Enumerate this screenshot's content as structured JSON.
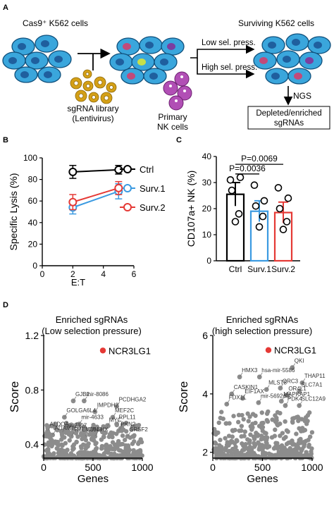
{
  "panel_a": {
    "label": "A",
    "title_left": "Cas9⁺ K562 cells",
    "title_right": "Surviving K562 cells",
    "library_line1": "sgRNA library",
    "library_line2": "(Lentivirus)",
    "nk_line1": "Primary",
    "nk_line2": "NK cells",
    "low_pressure": "Low sel. press.",
    "high_pressure": "High sel. press.",
    "ngs": "NGS",
    "result_line1": "Depleted/enriched",
    "result_line2": "sgRNAs",
    "colors": {
      "cell_fill": "#3aa6dc",
      "cell_stroke": "#10507c",
      "nucleus": "#1f5f9e",
      "nk": "#b14fb5",
      "gear": "#d4a017"
    }
  },
  "panel_b": {
    "label": "B"
  },
  "panel_c": {
    "label": "C"
  },
  "panel_d": {
    "label": "D",
    "left_title_line1": "Enriched sgRNAs",
    "left_title_line2": "(Low selection pressure)",
    "right_title_line1": "Enriched sgRNAs",
    "right_title_line2": "(high selection pressure)",
    "left_point_labels": [
      "GJB2",
      "mir-8086",
      "PCDHGA2",
      "IMPDH2",
      "GOLGA6L4",
      "MEF2C",
      "RPL11",
      "mir-4633",
      "MYC",
      "PKN2",
      "ALDOA",
      "mir-7107",
      "ADAMTS7",
      "JUNB",
      "LHX",
      "SRSF2",
      "TMEM38"
    ],
    "right_point_labels": [
      "QKI",
      "HMX3",
      "hsa-mir-5586",
      "THAP11",
      "CASKIN1",
      "MLST8",
      "ORC3",
      "SLC7A1",
      "EIF1AX",
      "OR4L1",
      "FDX1L",
      "mir-5692c-2",
      "MAPKAP1",
      "PDK4",
      "SLC12A9"
    ]
  },
  "chart_data": [
    {
      "type": "line",
      "xlabel": "E:T",
      "ylabel": "Specific Lysis (%)",
      "xlim": [
        0,
        6
      ],
      "ylim": [
        0,
        100
      ],
      "xticks": [
        "0",
        "2",
        "4",
        "6"
      ],
      "yticks": [
        "0",
        "20",
        "40",
        "60",
        "80",
        "100"
      ],
      "legend_position": "right",
      "series": [
        {
          "name": "Ctrl",
          "color": "#000000",
          "x": [
            2,
            5
          ],
          "y": [
            87,
            89
          ],
          "err": [
            6,
            4
          ]
        },
        {
          "name": "Surv.1",
          "color": "#3b9ae1",
          "x": [
            2,
            5
          ],
          "y": [
            54,
            69
          ],
          "err": [
            6,
            7
          ]
        },
        {
          "name": "Surv.2",
          "color": "#e53935",
          "x": [
            2,
            5
          ],
          "y": [
            59,
            72
          ],
          "err": [
            7,
            6
          ]
        }
      ]
    },
    {
      "type": "bar",
      "ylabel": "CD107a+ NK (%)",
      "ylim": [
        0,
        40
      ],
      "yticks": [
        "0",
        "10",
        "20",
        "30",
        "40"
      ],
      "categories": [
        "Ctrl",
        "Surv.1",
        "Surv.2"
      ],
      "values": [
        25.5,
        19,
        18.5
      ],
      "errors": [
        4.5,
        4,
        4
      ],
      "colors": [
        "#000000",
        "#3b9ae1",
        "#e53935"
      ],
      "points": [
        [
          31,
          32,
          27,
          18,
          15
        ],
        [
          29,
          23,
          21,
          17,
          13
        ],
        [
          28,
          24,
          20,
          15,
          12
        ]
      ],
      "annotations": [
        {
          "text": "P=0.0069",
          "from": 0,
          "to": 2,
          "y": 37
        },
        {
          "text": "P=0.0036",
          "from": 0,
          "to": 1,
          "y": 33.3
        }
      ]
    },
    {
      "type": "scatter",
      "ylabel": "Score",
      "xlabel": "Genes",
      "xlim": [
        0,
        1000
      ],
      "ylim": [
        0.3,
        1.2
      ],
      "xticks": [
        "0",
        "500",
        "1000"
      ],
      "yticks": [
        "0.4",
        "0.8",
        "1.2"
      ],
      "highlight": {
        "label": "NCR3LG1",
        "x": 600,
        "y": 1.09,
        "color": "#e53935"
      },
      "labeled_points": [
        {
          "label": "GJB2",
          "x": 300,
          "y": 0.72
        },
        {
          "label": "mir-8086",
          "x": 410,
          "y": 0.72
        },
        {
          "label": "PCDHGA2",
          "x": 740,
          "y": 0.68
        },
        {
          "label": "IMPDH2",
          "x": 520,
          "y": 0.64
        },
        {
          "label": "GOLGA6L4",
          "x": 210,
          "y": 0.6
        },
        {
          "label": "MEF2C",
          "x": 700,
          "y": 0.6
        },
        {
          "label": "RPL11",
          "x": 740,
          "y": 0.55
        },
        {
          "label": "mir-4633",
          "x": 360,
          "y": 0.55
        },
        {
          "label": "MYC",
          "x": 640,
          "y": 0.53
        },
        {
          "label": "PKN2",
          "x": 760,
          "y": 0.5
        },
        {
          "label": "ALDOA",
          "x": 40,
          "y": 0.5
        },
        {
          "label": "mir-7107",
          "x": 190,
          "y": 0.49
        },
        {
          "label": "ADAMTS7",
          "x": 90,
          "y": 0.47
        },
        {
          "label": "JUNB",
          "x": 420,
          "y": 0.46
        },
        {
          "label": "LHX",
          "x": 520,
          "y": 0.46
        },
        {
          "label": "SRSF2",
          "x": 850,
          "y": 0.46
        },
        {
          "label": "TMEM38",
          "x": 280,
          "y": 0.46
        }
      ]
    },
    {
      "type": "scatter",
      "ylabel": "Score",
      "xlabel": "Genes",
      "xlim": [
        0,
        1000
      ],
      "ylim": [
        1.8,
        6
      ],
      "xticks": [
        "0",
        "500",
        "1000"
      ],
      "yticks": [
        "2",
        "4",
        "6"
      ],
      "highlight": {
        "label": "NCR3LG1",
        "x": 560,
        "y": 5.5,
        "color": "#e53935"
      },
      "labeled_points": [
        {
          "label": "QKI",
          "x": 800,
          "y": 4.9
        },
        {
          "label": "HMX3",
          "x": 270,
          "y": 4.58
        },
        {
          "label": "hsa-mir-5586",
          "x": 470,
          "y": 4.58
        },
        {
          "label": "THAP11",
          "x": 900,
          "y": 4.38
        },
        {
          "label": "CASKIN1",
          "x": 190,
          "y": 4.0
        },
        {
          "label": "MLST8",
          "x": 540,
          "y": 4.15
        },
        {
          "label": "ORC3",
          "x": 680,
          "y": 4.2
        },
        {
          "label": "SLC7A1",
          "x": 870,
          "y": 4.08
        },
        {
          "label": "EIF1AX",
          "x": 300,
          "y": 3.85
        },
        {
          "label": "OR4L1",
          "x": 740,
          "y": 3.95
        },
        {
          "label": "FDX1L",
          "x": 140,
          "y": 3.65
        },
        {
          "label": "mir-5692c-2",
          "x": 460,
          "y": 3.7
        },
        {
          "label": "MAPKAP1",
          "x": 690,
          "y": 3.75
        },
        {
          "label": "PDK4",
          "x": 730,
          "y": 3.6
        },
        {
          "label": "SLC12A9",
          "x": 870,
          "y": 3.6
        }
      ]
    }
  ]
}
